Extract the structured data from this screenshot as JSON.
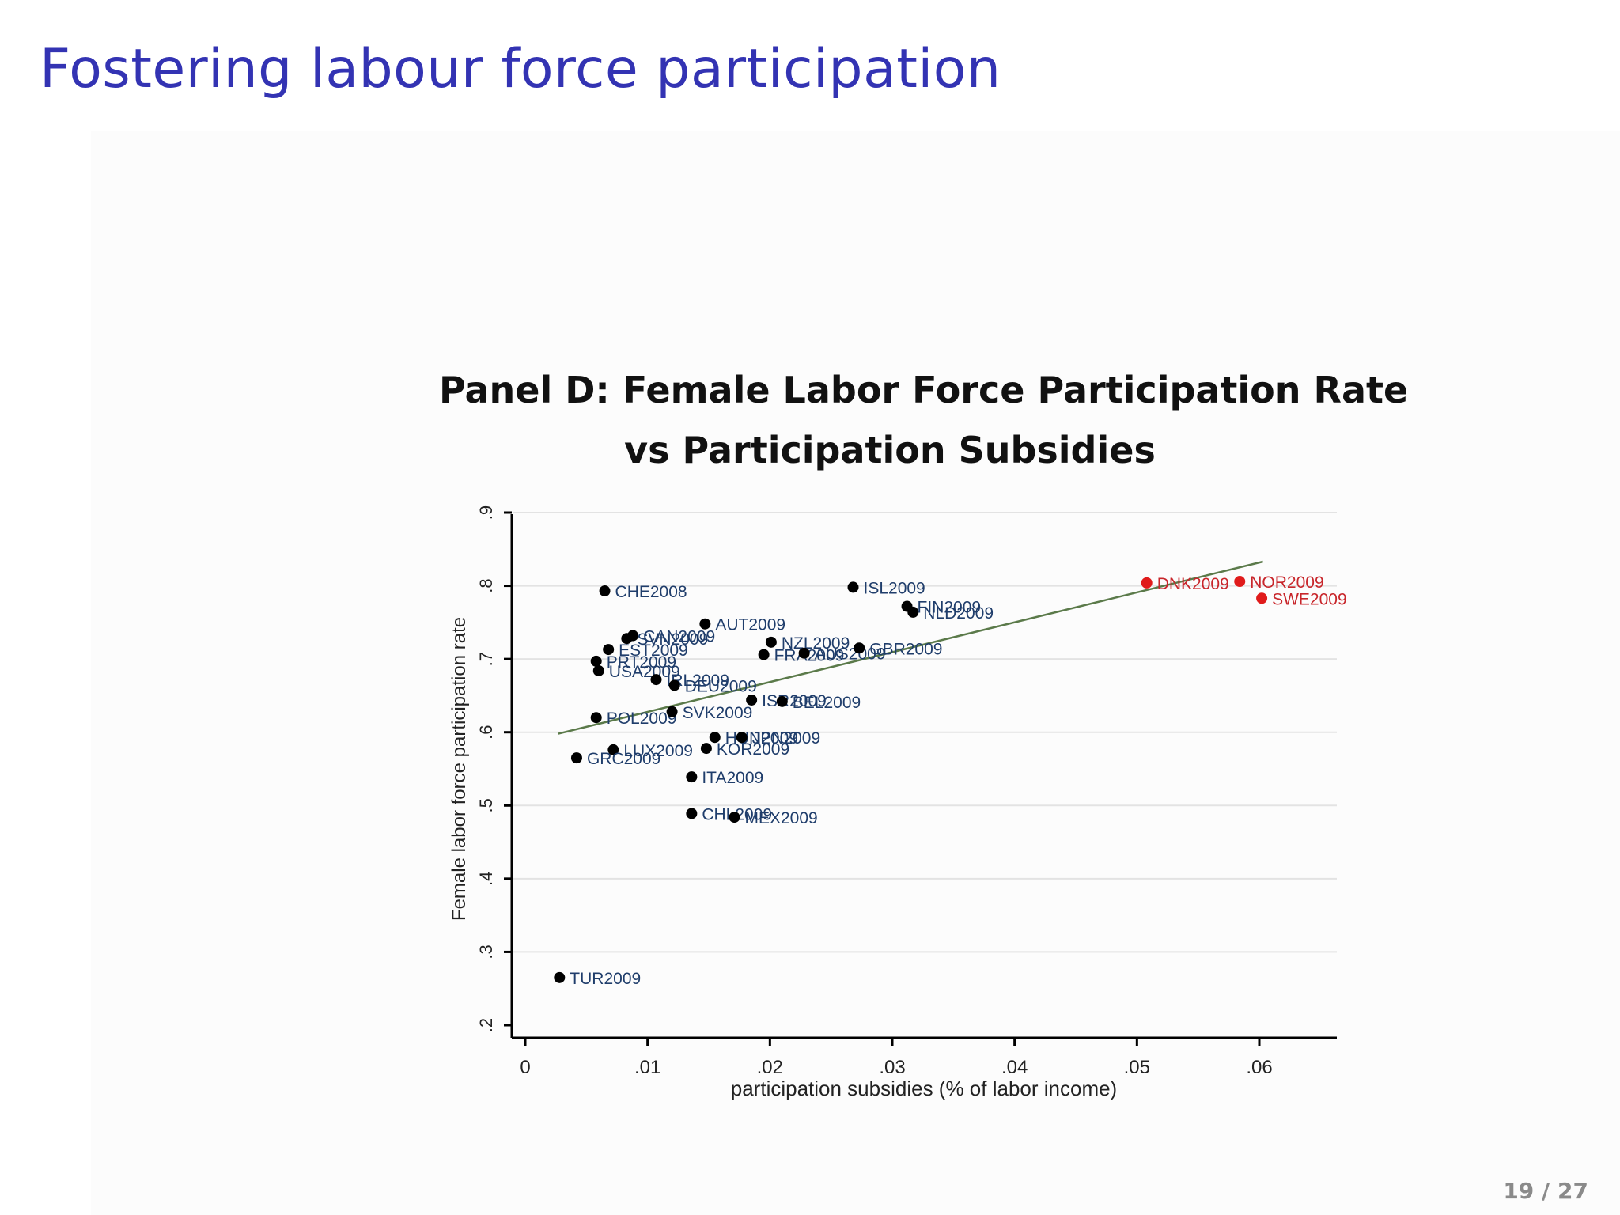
{
  "slide": {
    "title": "Fostering labour force participation",
    "page_current": "19",
    "page_total": "27"
  },
  "colors": {
    "slide_title": "#3333b3",
    "point_default": "#000000",
    "point_nordic": "#e01b1b",
    "label_default": "#1f3d6b",
    "label_nordic": "#c8262b",
    "fit_line": "#5b7a4a",
    "grid": "#e3e3e3"
  },
  "chart_data": {
    "type": "scatter",
    "title_line1": "Panel D: Female Labor Force Participation Rate",
    "title_line2": "vs Participation Subsidies",
    "xlabel": "participation subsidies (% of labor income)",
    "ylabel": "Female labor force participation rate",
    "xlim": [
      0,
      0.066
    ],
    "ylim": [
      0.2,
      0.9
    ],
    "xticks": [
      0,
      0.01,
      0.02,
      0.03,
      0.04,
      0.05,
      0.06
    ],
    "xtick_labels": [
      "0",
      ".01",
      ".02",
      ".03",
      ".04",
      ".05",
      ".06"
    ],
    "yticks": [
      0.2,
      0.3,
      0.4,
      0.5,
      0.6,
      0.7,
      0.8,
      0.9
    ],
    "ytick_labels": [
      ".2",
      ".3",
      ".4",
      ".5",
      ".6",
      ".7",
      ".8",
      ".9"
    ],
    "grid": true,
    "fit_line": {
      "x": [
        0.0027,
        0.0603
      ],
      "y": [
        0.598,
        0.833
      ]
    },
    "points": [
      {
        "label": "CHE2008",
        "x": 0.0065,
        "y": 0.793,
        "group": "default"
      },
      {
        "label": "ISL2009",
        "x": 0.0268,
        "y": 0.798,
        "group": "default"
      },
      {
        "label": "FIN2009",
        "x": 0.0312,
        "y": 0.772,
        "group": "default"
      },
      {
        "label": "NLD2009",
        "x": 0.0317,
        "y": 0.764,
        "group": "default"
      },
      {
        "label": "AUT2009",
        "x": 0.0147,
        "y": 0.748,
        "group": "default"
      },
      {
        "label": "SVN2009",
        "x": 0.0083,
        "y": 0.728,
        "group": "default"
      },
      {
        "label": "CAN2009",
        "x": 0.0088,
        "y": 0.732,
        "group": "default"
      },
      {
        "label": "EST2009",
        "x": 0.0068,
        "y": 0.713,
        "group": "default"
      },
      {
        "label": "PRT2009",
        "x": 0.0058,
        "y": 0.697,
        "group": "default"
      },
      {
        "label": "USA2009",
        "x": 0.006,
        "y": 0.684,
        "group": "default"
      },
      {
        "label": "NZL2009",
        "x": 0.0201,
        "y": 0.723,
        "group": "default"
      },
      {
        "label": "FRA2009",
        "x": 0.0195,
        "y": 0.706,
        "group": "default"
      },
      {
        "label": "AUS2009",
        "x": 0.0228,
        "y": 0.708,
        "group": "default"
      },
      {
        "label": "GBR2009",
        "x": 0.0273,
        "y": 0.715,
        "group": "default"
      },
      {
        "label": "IRL2009",
        "x": 0.0107,
        "y": 0.672,
        "group": "default"
      },
      {
        "label": "DEU2009",
        "x": 0.0122,
        "y": 0.664,
        "group": "default"
      },
      {
        "label": "ISR2009",
        "x": 0.0185,
        "y": 0.644,
        "group": "default"
      },
      {
        "label": "BEL2009",
        "x": 0.021,
        "y": 0.642,
        "group": "default"
      },
      {
        "label": "POL2009",
        "x": 0.0058,
        "y": 0.62,
        "group": "default"
      },
      {
        "label": "SVK2009",
        "x": 0.012,
        "y": 0.628,
        "group": "default"
      },
      {
        "label": "HUN2009",
        "x": 0.0155,
        "y": 0.593,
        "group": "default"
      },
      {
        "label": "JPN2009",
        "x": 0.0177,
        "y": 0.593,
        "group": "default"
      },
      {
        "label": "LUX2009",
        "x": 0.0072,
        "y": 0.576,
        "group": "default"
      },
      {
        "label": "KOR2009",
        "x": 0.0148,
        "y": 0.578,
        "group": "default"
      },
      {
        "label": "GRC2009",
        "x": 0.0042,
        "y": 0.565,
        "group": "default"
      },
      {
        "label": "ITA2009",
        "x": 0.0136,
        "y": 0.539,
        "group": "default"
      },
      {
        "label": "CHL2009",
        "x": 0.0136,
        "y": 0.489,
        "group": "default"
      },
      {
        "label": "MEX2009",
        "x": 0.0171,
        "y": 0.484,
        "group": "default"
      },
      {
        "label": "TUR2009",
        "x": 0.0028,
        "y": 0.265,
        "group": "default"
      },
      {
        "label": "DNK2009",
        "x": 0.0508,
        "y": 0.804,
        "group": "nordic"
      },
      {
        "label": "NOR2009",
        "x": 0.0584,
        "y": 0.806,
        "group": "nordic"
      },
      {
        "label": "SWE2009",
        "x": 0.0602,
        "y": 0.783,
        "group": "nordic"
      }
    ]
  }
}
